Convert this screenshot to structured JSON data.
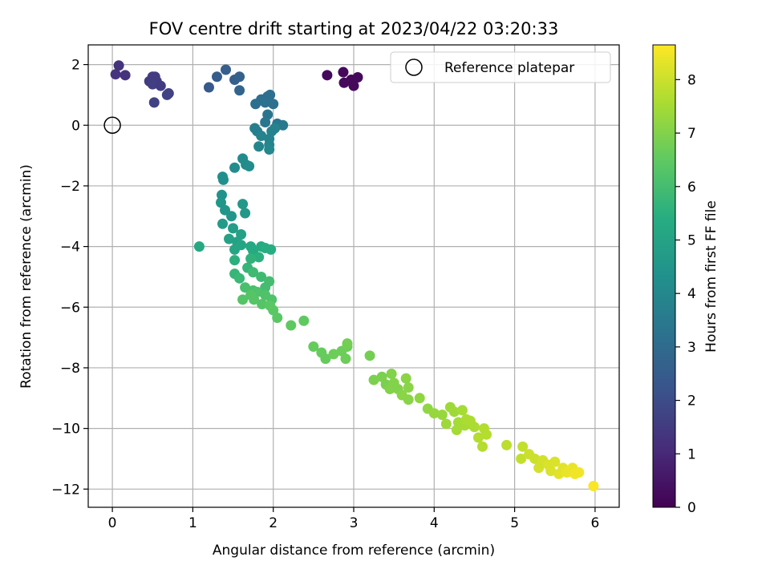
{
  "chart_data": {
    "type": "scatter",
    "title": "FOV centre drift starting at 2023/04/22 03:20:33",
    "xlabel": "Angular distance from reference (arcmin)",
    "ylabel": "Rotation from reference (arcmin)",
    "xlim": [
      -0.3,
      6.3
    ],
    "ylim": [
      -12.6,
      2.65
    ],
    "xticks": [
      0,
      1,
      2,
      3,
      4,
      5,
      6
    ],
    "yticks": [
      2,
      0,
      -2,
      -4,
      -6,
      -8,
      -10,
      -12
    ],
    "grid": true,
    "legend": {
      "position": "top-right",
      "entries": [
        "Reference platepar"
      ]
    },
    "reference": {
      "x": 0,
      "y": 0
    },
    "colorbar": {
      "label": "Hours from first FF file",
      "range": [
        0,
        8.65
      ],
      "ticks": [
        0,
        1,
        2,
        3,
        4,
        5,
        6,
        7,
        8
      ],
      "colormap": "viridis"
    },
    "points": [
      [
        2.67,
        1.65,
        0.2
      ],
      [
        2.87,
        1.75,
        0.2
      ],
      [
        2.88,
        1.4,
        0.2
      ],
      [
        2.97,
        1.5,
        0.2
      ],
      [
        3.0,
        1.3,
        0.2
      ],
      [
        3.05,
        1.58,
        0.2
      ],
      [
        0.08,
        1.97,
        1.3
      ],
      [
        0.04,
        1.68,
        1.3
      ],
      [
        0.16,
        1.65,
        1.3
      ],
      [
        0.5,
        1.6,
        1.5
      ],
      [
        0.53,
        1.6,
        1.5
      ],
      [
        0.46,
        1.45,
        1.5
      ],
      [
        0.55,
        1.45,
        1.5
      ],
      [
        0.5,
        1.35,
        1.6
      ],
      [
        0.6,
        1.3,
        1.5
      ],
      [
        0.52,
        0.75,
        1.7
      ],
      [
        0.7,
        1.05,
        1.7
      ],
      [
        0.68,
        1.0,
        1.7
      ],
      [
        1.2,
        1.25,
        2.4
      ],
      [
        1.3,
        1.6,
        2.5
      ],
      [
        1.41,
        1.83,
        2.6
      ],
      [
        1.52,
        1.5,
        2.6
      ],
      [
        1.58,
        1.6,
        2.7
      ],
      [
        1.58,
        1.15,
        2.8
      ],
      [
        1.78,
        0.7,
        3.1
      ],
      [
        1.85,
        0.85,
        3.1
      ],
      [
        1.93,
        0.95,
        3.1
      ],
      [
        1.96,
        1.0,
        3.1
      ],
      [
        1.9,
        0.75,
        3.2
      ],
      [
        2.0,
        0.7,
        3.2
      ],
      [
        1.93,
        0.35,
        3.3
      ],
      [
        1.9,
        0.1,
        3.4
      ],
      [
        2.05,
        0.05,
        3.4
      ],
      [
        2.12,
        0.0,
        3.5
      ],
      [
        1.77,
        -0.1,
        3.7
      ],
      [
        1.8,
        -0.2,
        3.7
      ],
      [
        1.85,
        -0.35,
        3.8
      ],
      [
        1.95,
        -0.45,
        3.8
      ],
      [
        1.98,
        -0.2,
        3.8
      ],
      [
        2.02,
        -0.1,
        3.8
      ],
      [
        1.82,
        -0.7,
        3.9
      ],
      [
        1.95,
        -0.65,
        3.9
      ],
      [
        1.95,
        -0.8,
        4.0
      ],
      [
        1.62,
        -1.1,
        4.1
      ],
      [
        1.66,
        -1.3,
        4.1
      ],
      [
        1.52,
        -1.4,
        4.2
      ],
      [
        1.7,
        -1.35,
        4.2
      ],
      [
        1.37,
        -1.7,
        4.3
      ],
      [
        1.38,
        -1.8,
        4.3
      ],
      [
        1.36,
        -2.3,
        4.4
      ],
      [
        1.35,
        -2.55,
        4.5
      ],
      [
        1.4,
        -2.8,
        4.5
      ],
      [
        1.48,
        -3.0,
        4.5
      ],
      [
        1.62,
        -2.6,
        4.6
      ],
      [
        1.65,
        -2.9,
        4.6
      ],
      [
        1.37,
        -3.25,
        4.7
      ],
      [
        1.5,
        -3.4,
        4.8
      ],
      [
        1.6,
        -3.6,
        4.9
      ],
      [
        1.45,
        -3.75,
        5.0
      ],
      [
        1.55,
        -3.85,
        5.0
      ],
      [
        1.6,
        -3.95,
        5.1
      ],
      [
        1.52,
        -4.1,
        5.1
      ],
      [
        1.08,
        -4.0,
        5.2
      ],
      [
        1.72,
        -4.0,
        5.2
      ],
      [
        1.75,
        -4.15,
        5.3
      ],
      [
        1.85,
        -4.0,
        5.3
      ],
      [
        1.9,
        -4.05,
        5.4
      ],
      [
        1.97,
        -4.1,
        5.4
      ],
      [
        1.82,
        -4.35,
        5.5
      ],
      [
        1.52,
        -4.45,
        5.5
      ],
      [
        1.72,
        -4.4,
        5.6
      ],
      [
        1.68,
        -4.7,
        5.7
      ],
      [
        1.52,
        -4.9,
        5.7
      ],
      [
        1.58,
        -5.05,
        5.8
      ],
      [
        1.75,
        -4.85,
        5.9
      ],
      [
        1.85,
        -5.0,
        5.9
      ],
      [
        1.95,
        -5.15,
        6.0
      ],
      [
        1.9,
        -5.35,
        6.0
      ],
      [
        1.65,
        -5.35,
        6.1
      ],
      [
        1.75,
        -5.45,
        6.1
      ],
      [
        1.8,
        -5.5,
        6.2
      ],
      [
        1.9,
        -5.6,
        6.2
      ],
      [
        1.98,
        -5.75,
        6.2
      ],
      [
        1.72,
        -5.6,
        6.3
      ],
      [
        1.62,
        -5.75,
        6.3
      ],
      [
        1.76,
        -5.75,
        6.3
      ],
      [
        1.86,
        -5.9,
        6.3
      ],
      [
        1.96,
        -5.95,
        6.4
      ],
      [
        2.0,
        -6.1,
        6.4
      ],
      [
        2.05,
        -6.35,
        6.4
      ],
      [
        2.22,
        -6.6,
        6.5
      ],
      [
        2.38,
        -6.45,
        6.5
      ],
      [
        2.5,
        -7.3,
        6.6
      ],
      [
        2.6,
        -7.5,
        6.6
      ],
      [
        2.65,
        -7.7,
        6.6
      ],
      [
        2.75,
        -7.55,
        6.7
      ],
      [
        2.85,
        -7.45,
        6.7
      ],
      [
        2.9,
        -7.7,
        6.7
      ],
      [
        2.92,
        -7.3,
        6.7
      ],
      [
        2.92,
        -7.2,
        6.8
      ],
      [
        3.2,
        -7.6,
        6.8
      ],
      [
        3.25,
        -8.4,
        6.9
      ],
      [
        3.35,
        -8.3,
        6.9
      ],
      [
        3.4,
        -8.55,
        6.9
      ],
      [
        3.45,
        -8.7,
        7.0
      ],
      [
        3.5,
        -8.5,
        7.0
      ],
      [
        3.47,
        -8.2,
        7.0
      ],
      [
        3.55,
        -8.7,
        7.0
      ],
      [
        3.6,
        -8.9,
        7.1
      ],
      [
        3.65,
        -8.35,
        7.1
      ],
      [
        3.68,
        -8.65,
        7.1
      ],
      [
        3.68,
        -9.05,
        7.1
      ],
      [
        3.82,
        -9.0,
        7.2
      ],
      [
        3.92,
        -9.35,
        7.2
      ],
      [
        4.0,
        -9.5,
        7.3
      ],
      [
        4.1,
        -9.55,
        7.3
      ],
      [
        4.15,
        -9.85,
        7.4
      ],
      [
        4.2,
        -9.3,
        7.4
      ],
      [
        4.25,
        -9.45,
        7.4
      ],
      [
        4.3,
        -9.8,
        7.5
      ],
      [
        4.35,
        -9.4,
        7.5
      ],
      [
        4.38,
        -9.9,
        7.5
      ],
      [
        4.28,
        -10.05,
        7.5
      ],
      [
        4.4,
        -9.7,
        7.6
      ],
      [
        4.45,
        -9.75,
        7.6
      ],
      [
        4.5,
        -9.95,
        7.6
      ],
      [
        4.55,
        -10.3,
        7.7
      ],
      [
        4.6,
        -10.6,
        7.7
      ],
      [
        4.62,
        -10.0,
        7.7
      ],
      [
        4.65,
        -10.2,
        7.7
      ],
      [
        4.9,
        -10.55,
        7.8
      ],
      [
        5.1,
        -10.6,
        7.9
      ],
      [
        5.08,
        -11.0,
        7.9
      ],
      [
        5.18,
        -10.85,
        8.0
      ],
      [
        5.25,
        -11.0,
        8.0
      ],
      [
        5.3,
        -11.3,
        8.1
      ],
      [
        5.35,
        -11.05,
        8.1
      ],
      [
        5.42,
        -11.2,
        8.2
      ],
      [
        5.45,
        -11.4,
        8.2
      ],
      [
        5.5,
        -11.1,
        8.2
      ],
      [
        5.55,
        -11.5,
        8.3
      ],
      [
        5.6,
        -11.3,
        8.3
      ],
      [
        5.65,
        -11.45,
        8.4
      ],
      [
        5.72,
        -11.3,
        8.4
      ],
      [
        5.75,
        -11.5,
        8.5
      ],
      [
        5.8,
        -11.45,
        8.5
      ],
      [
        5.98,
        -11.9,
        8.6
      ]
    ]
  }
}
